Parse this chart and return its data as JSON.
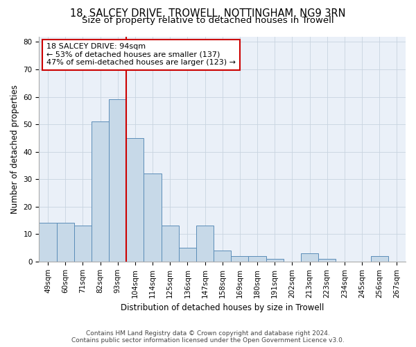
{
  "title_line1": "18, SALCEY DRIVE, TROWELL, NOTTINGHAM, NG9 3RN",
  "title_line2": "Size of property relative to detached houses in Trowell",
  "xlabel": "Distribution of detached houses by size in Trowell",
  "ylabel": "Number of detached properties",
  "categories": [
    "49sqm",
    "60sqm",
    "71sqm",
    "82sqm",
    "93sqm",
    "104sqm",
    "114sqm",
    "125sqm",
    "136sqm",
    "147sqm",
    "158sqm",
    "169sqm",
    "180sqm",
    "191sqm",
    "202sqm",
    "213sqm",
    "223sqm",
    "234sqm",
    "245sqm",
    "256sqm",
    "267sqm"
  ],
  "values": [
    14,
    14,
    13,
    51,
    59,
    45,
    32,
    13,
    5,
    13,
    4,
    2,
    2,
    1,
    0,
    3,
    1,
    0,
    0,
    2,
    0
  ],
  "bar_color": "#c7d9e8",
  "bar_edge_color": "#5b8db8",
  "vline_color": "#cc0000",
  "vline_x_index": 4,
  "annotation_text": "18 SALCEY DRIVE: 94sqm\n← 53% of detached houses are smaller (137)\n47% of semi-detached houses are larger (123) →",
  "annotation_box_color": "#ffffff",
  "annotation_box_edge": "#cc0000",
  "ylim": [
    0,
    82
  ],
  "yticks": [
    0,
    10,
    20,
    30,
    40,
    50,
    60,
    70,
    80
  ],
  "grid_color": "#c8d4e0",
  "bg_color": "#eaf0f8",
  "footer_line1": "Contains HM Land Registry data © Crown copyright and database right 2024.",
  "footer_line2": "Contains public sector information licensed under the Open Government Licence v3.0.",
  "title_fontsize": 10.5,
  "subtitle_fontsize": 9.5,
  "tick_fontsize": 7.5,
  "ylabel_fontsize": 8.5,
  "xlabel_fontsize": 8.5,
  "annotation_fontsize": 8,
  "footer_fontsize": 6.5
}
